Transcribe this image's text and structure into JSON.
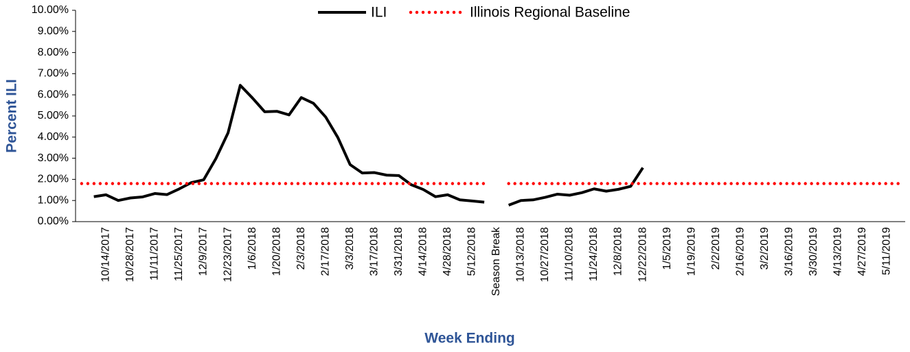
{
  "chart_data": {
    "type": "line",
    "x_label": "Week Ending",
    "y_label": "Percent ILI",
    "legend": "top",
    "categories": [
      null,
      null,
      "10/14/2017",
      null,
      "10/28/2017",
      null,
      "11/11/2017",
      null,
      "11/25/2017",
      null,
      "12/9/2017",
      null,
      "12/23/2017",
      null,
      "1/6/2018",
      null,
      "1/20/2018",
      null,
      "2/3/2018",
      null,
      "2/17/2018",
      null,
      "3/3/2018",
      null,
      "3/17/2018",
      null,
      "3/31/2018",
      null,
      "4/14/2018",
      null,
      "4/28/2018",
      null,
      "5/12/2018",
      null,
      "Season Break",
      null,
      "10/13/2018",
      null,
      "10/27/2018",
      null,
      "11/10/2018",
      null,
      "11/24/2018",
      null,
      "12/8/2018",
      null,
      "12/22/2018",
      null,
      "1/5/2019",
      null,
      "1/19/2019",
      null,
      "2/2/2019",
      null,
      "2/16/2019",
      null,
      "3/2/2019",
      null,
      "3/16/2019",
      null,
      "3/30/2019",
      null,
      "4/13/2019",
      null,
      "4/27/2019",
      null,
      "5/11/2019",
      null
    ],
    "series": [
      {
        "name": "ILI",
        "color": "#000000",
        "style": "solid",
        "values": [
          null,
          1.18,
          1.27,
          1.0,
          1.12,
          1.17,
          1.33,
          1.28,
          1.55,
          1.85,
          1.98,
          2.98,
          4.2,
          6.45,
          5.85,
          5.2,
          5.22,
          5.05,
          5.87,
          5.6,
          4.95,
          3.98,
          2.7,
          2.3,
          2.32,
          2.2,
          2.18,
          1.75,
          1.52,
          1.18,
          1.27,
          1.03,
          0.98,
          0.92,
          null,
          0.78,
          1.0,
          1.03,
          1.15,
          1.3,
          1.25,
          1.37,
          1.55,
          1.44,
          1.53,
          1.67,
          2.55,
          null,
          null,
          null,
          null,
          null,
          null,
          null,
          null,
          null,
          null,
          null,
          null,
          null,
          null,
          null,
          null,
          null,
          null,
          null,
          null,
          null
        ]
      },
      {
        "name": "Illinois Regional Baseline",
        "color": "#ff0000",
        "style": "dotted",
        "values": [
          1.8,
          1.8,
          1.8,
          1.8,
          1.8,
          1.8,
          1.8,
          1.8,
          1.8,
          1.8,
          1.8,
          1.8,
          1.8,
          1.8,
          1.8,
          1.8,
          1.8,
          1.8,
          1.8,
          1.8,
          1.8,
          1.8,
          1.8,
          1.8,
          1.8,
          1.8,
          1.8,
          1.8,
          1.8,
          1.8,
          1.8,
          1.8,
          1.8,
          1.8,
          null,
          1.8,
          1.8,
          1.8,
          1.8,
          1.8,
          1.8,
          1.8,
          1.8,
          1.8,
          1.8,
          1.8,
          1.8,
          1.8,
          1.8,
          1.8,
          1.8,
          1.8,
          1.8,
          1.8,
          1.8,
          1.8,
          1.8,
          1.8,
          1.8,
          1.8,
          1.8,
          1.8,
          1.8,
          1.8,
          1.8,
          1.8,
          1.8,
          1.8
        ]
      }
    ],
    "ylim": [
      0,
      10
    ],
    "yticks": [
      {
        "value": 0,
        "label": "0.00%"
      },
      {
        "value": 1,
        "label": "1.00%"
      },
      {
        "value": 2,
        "label": "2.00%"
      },
      {
        "value": 3,
        "label": "3.00%"
      },
      {
        "value": 4,
        "label": "4.00%"
      },
      {
        "value": 5,
        "label": "5.00%"
      },
      {
        "value": 6,
        "label": "6.00%"
      },
      {
        "value": 7,
        "label": "7.00%"
      },
      {
        "value": 8,
        "label": "8.00%"
      },
      {
        "value": 9,
        "label": "9.00%"
      },
      {
        "value": 10,
        "label": "10.00%"
      }
    ]
  }
}
